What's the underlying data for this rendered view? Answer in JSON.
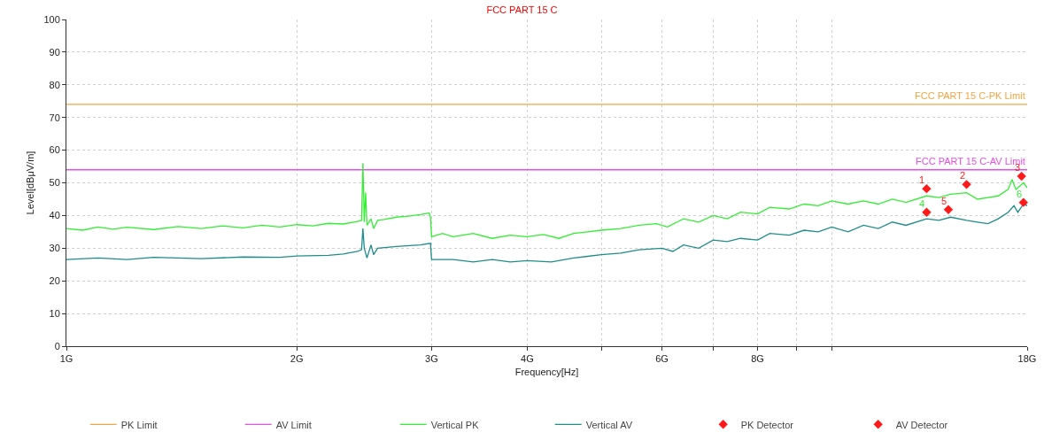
{
  "chart_data": {
    "type": "line",
    "title": "FCC PART 15 C",
    "xlabel": "Frequency[Hz]",
    "ylabel": "Level[dBμV/m]",
    "log": "x",
    "xlim": [
      1,
      18
    ],
    "xticks": [
      {
        "value": 1,
        "label": "1G"
      },
      {
        "value": 2,
        "label": "2G"
      },
      {
        "value": 3,
        "label": "3G"
      },
      {
        "value": 4,
        "label": "4G"
      },
      {
        "value": 5,
        "label": null
      },
      {
        "value": 6,
        "label": "6G"
      },
      {
        "value": 7,
        "label": null
      },
      {
        "value": 8,
        "label": "8G"
      },
      {
        "value": 9,
        "label": null
      },
      {
        "value": 10,
        "label": null
      },
      {
        "value": 18,
        "label": "18G"
      }
    ],
    "ylim": [
      0,
      100
    ],
    "yticks": [
      0,
      10,
      20,
      30,
      40,
      50,
      60,
      70,
      80,
      90,
      100
    ],
    "grid": true,
    "legend": "bottom",
    "marker": "none",
    "line_style": "solid",
    "annotations": [
      {
        "text": "FCC PART 15 C-PK Limit",
        "x": 18,
        "y": 74
      },
      {
        "text": "FCC PART 15 C-AV Limit",
        "x": 18,
        "y": 54
      },
      {
        "text": "1",
        "x": 13.3,
        "y": 48.2
      },
      {
        "text": "2",
        "x": 15,
        "y": 49.5
      },
      {
        "text": "3",
        "x": 17.7,
        "y": 52
      },
      {
        "text": "4",
        "x": 13.3,
        "y": 41
      },
      {
        "text": "5",
        "x": 14.2,
        "y": 41.8
      },
      {
        "text": "6",
        "x": 17.8,
        "y": 44
      }
    ],
    "series": [
      {
        "name": "PK Limit",
        "color": "#f5a443",
        "x": [
          1,
          18
        ],
        "values": [
          74,
          74
        ]
      },
      {
        "name": "AV Limit",
        "color": "#e84fe8",
        "x": [
          1,
          18
        ],
        "values": [
          54,
          54
        ]
      },
      {
        "name": "Vertical PK",
        "color": "#33ee33",
        "x": [
          1.0,
          1.05,
          1.1,
          1.15,
          1.2,
          1.3,
          1.4,
          1.5,
          1.6,
          1.7,
          1.8,
          1.9,
          2.0,
          2.1,
          2.2,
          2.3,
          2.4,
          2.43,
          2.44,
          2.45,
          2.46,
          2.47,
          2.5,
          2.52,
          2.55,
          2.6,
          2.7,
          2.8,
          2.9,
          2.98,
          2.99,
          3.0,
          3.1,
          3.2,
          3.4,
          3.6,
          3.8,
          4.0,
          4.2,
          4.4,
          4.6,
          4.8,
          5.0,
          5.3,
          5.6,
          5.9,
          6.1,
          6.4,
          6.7,
          7.0,
          7.3,
          7.6,
          8.0,
          8.3,
          8.8,
          9.2,
          9.6,
          10,
          10.5,
          11,
          11.5,
          12,
          12.5,
          13.3,
          13.8,
          14.3,
          15,
          15.5,
          16,
          16.5,
          17,
          17.2,
          17.4,
          17.6,
          17.8,
          18
        ],
        "values": [
          36,
          35.5,
          36.5,
          35.8,
          36.4,
          35.7,
          36.6,
          36,
          36.8,
          36.2,
          37,
          36.5,
          37.2,
          36.8,
          37.6,
          37.4,
          38.2,
          38.5,
          56,
          38,
          47,
          37,
          39,
          36,
          38.5,
          38.8,
          39.5,
          39.8,
          40.3,
          40.8,
          39.5,
          33.5,
          34.5,
          33.5,
          34.5,
          33,
          34,
          33.5,
          34.2,
          33,
          34.5,
          35,
          35.5,
          36,
          37,
          37.5,
          36.5,
          39,
          38,
          40,
          39,
          41,
          40.5,
          42.5,
          42,
          43.5,
          43,
          44.5,
          43.5,
          44.5,
          43.5,
          45,
          44,
          46,
          45.5,
          46.5,
          47,
          45,
          45.5,
          46,
          48,
          51,
          48,
          49,
          50,
          48.5
        ]
      },
      {
        "name": "Vertical AV",
        "color": "#1f8c8c",
        "x": [
          1.0,
          1.1,
          1.2,
          1.3,
          1.5,
          1.7,
          1.9,
          2.0,
          2.2,
          2.3,
          2.4,
          2.43,
          2.44,
          2.45,
          2.47,
          2.5,
          2.52,
          2.55,
          2.7,
          2.9,
          2.99,
          3.0,
          3.2,
          3.4,
          3.6,
          3.8,
          4.0,
          4.3,
          4.6,
          4.8,
          5.0,
          5.3,
          5.6,
          6.0,
          6.2,
          6.4,
          6.7,
          7.0,
          7.3,
          7.6,
          8.0,
          8.3,
          8.8,
          9.2,
          9.6,
          10,
          10.5,
          11,
          11.5,
          12,
          12.5,
          13.3,
          13.8,
          14.3,
          15,
          15.5,
          16,
          16.5,
          17,
          17.3,
          17.5,
          17.8,
          18
        ],
        "values": [
          26.5,
          27,
          26.5,
          27.2,
          26.8,
          27.3,
          27.2,
          27.6,
          27.8,
          28.2,
          29,
          29.5,
          36,
          30,
          27,
          31,
          28,
          30,
          30.5,
          31,
          31.5,
          26.5,
          26.5,
          25.8,
          26.5,
          25.8,
          26.2,
          25.8,
          27,
          27.5,
          28,
          28.5,
          29.5,
          30,
          29,
          31,
          30,
          32.5,
          32,
          33,
          32.5,
          34.5,
          34,
          35.5,
          35,
          36.5,
          35,
          37,
          36,
          38,
          37,
          39,
          38.5,
          39.5,
          38.5,
          38,
          37.5,
          39,
          41,
          43,
          41,
          43.5,
          43
        ]
      },
      {
        "name": "PK Detector",
        "type": "scatter",
        "marker": "diamond",
        "color": "#ff1a1a",
        "x": [
          13.3,
          15,
          17.7
        ],
        "values": [
          48.2,
          49.5,
          52
        ]
      },
      {
        "name": "AV Detector",
        "type": "scatter",
        "marker": "diamond",
        "color": "#ff1a1a",
        "x": [
          13.3,
          14.2,
          17.8
        ],
        "values": [
          41,
          41.8,
          44
        ]
      }
    ]
  }
}
